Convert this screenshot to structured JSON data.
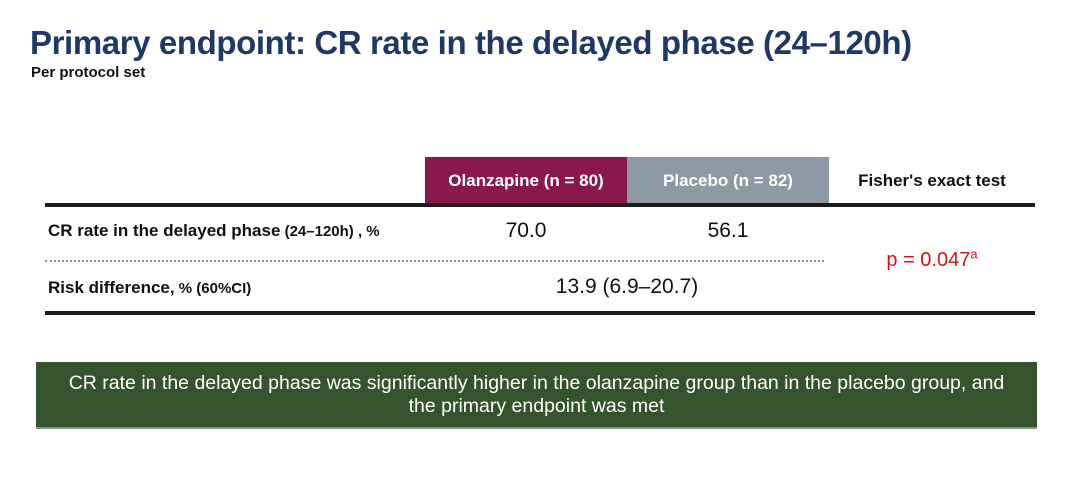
{
  "slide": {
    "title": "Primary endpoint: CR rate in the delayed phase (24–120h)",
    "subtitle": "Per protocol set"
  },
  "table": {
    "columns": [
      {
        "label": "Olanzapine (n = 80)",
        "bg": "#8A184D"
      },
      {
        "label": "Placebo (n = 82)",
        "bg": "#8D99A4"
      },
      {
        "label": "Fisher's exact test",
        "bg": "transparent"
      }
    ],
    "rows": [
      {
        "label_main": "CR rate in the delayed phase",
        "label_sub": " (24–120h) , %",
        "olanzapine_value": "70.0",
        "placebo_value": "56.1"
      },
      {
        "label_main": "Risk difference,",
        "label_sub": " % (60%CI)",
        "combined_value": "13.9 (6.9–20.7)"
      }
    ],
    "p_value": {
      "text": "p = 0.047",
      "superscript": "a"
    }
  },
  "banner": {
    "text": "CR rate in the delayed phase was significantly higher in the olanzapine group than in the placebo group, and the primary endpoint was met"
  },
  "colors": {
    "title_navy": "#1F3864",
    "olanzapine_maroon": "#8A184D",
    "placebo_gray": "#8D99A4",
    "p_value_red": "#CB1519",
    "banner_green": "#35532C",
    "rule_black": "#1c1c1c"
  }
}
